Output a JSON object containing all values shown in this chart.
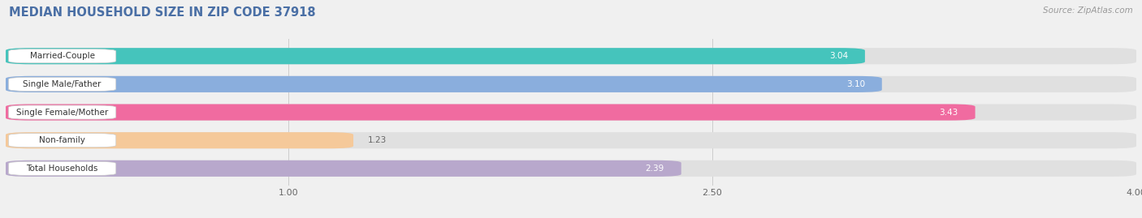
{
  "title": "MEDIAN HOUSEHOLD SIZE IN ZIP CODE 37918",
  "source": "Source: ZipAtlas.com",
  "categories": [
    "Married-Couple",
    "Single Male/Father",
    "Single Female/Mother",
    "Non-family",
    "Total Households"
  ],
  "values": [
    3.04,
    3.1,
    3.43,
    1.23,
    2.39
  ],
  "bar_colors": [
    "#45C4BC",
    "#8AAEDD",
    "#F06BA0",
    "#F5C99A",
    "#B8A8CC"
  ],
  "xlim_min": 0,
  "xlim_max": 4.0,
  "xticks": [
    1.0,
    2.5,
    4.0
  ],
  "value_label_color_inside": "#ffffff",
  "value_label_color_outside": "#666666",
  "background_color": "#f0f0f0",
  "bar_background_color": "#e0e0e0",
  "label_box_color": "#ffffff",
  "title_color": "#4a6fa5",
  "source_color": "#999999",
  "title_fontsize": 10.5,
  "source_fontsize": 7.5,
  "label_fontsize": 7.5,
  "value_fontsize": 7.5,
  "tick_fontsize": 8,
  "bar_height": 0.58,
  "bar_gap": 1.0,
  "figsize": [
    14.06,
    2.69
  ],
  "dpi": 100
}
